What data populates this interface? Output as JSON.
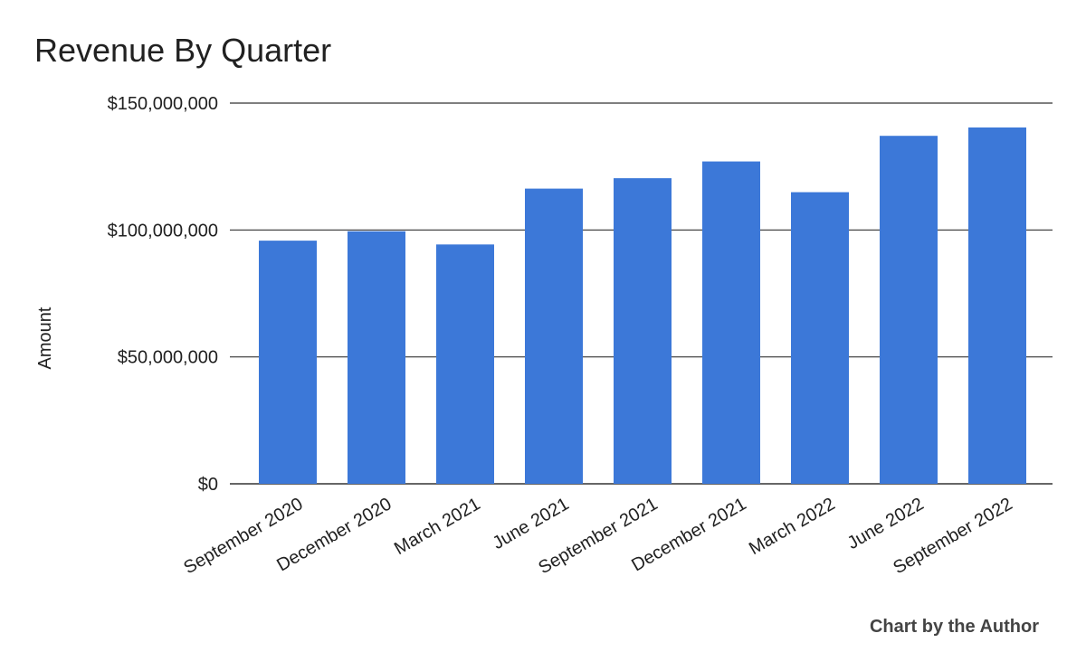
{
  "chart_data": {
    "type": "bar",
    "title": "Revenue By Quarter",
    "xlabel": "",
    "ylabel": "Amount",
    "categories": [
      "September 2020",
      "December 2020",
      "March 2021",
      "June 2021",
      "September 2021",
      "December 2021",
      "March 2022",
      "June 2022",
      "September 2022"
    ],
    "values": [
      95800000,
      99500000,
      94300000,
      116300000,
      120400000,
      127000000,
      114900000,
      137100000,
      140400000
    ],
    "ylim": [
      0,
      150000000
    ],
    "y_ticks": [
      0,
      50000000,
      100000000,
      150000000
    ],
    "y_tick_labels": [
      "$0",
      "$50,000,000",
      "$100,000,000",
      "$150,000,000"
    ],
    "grid": true,
    "legend": "none",
    "bar_color": "#3c78d8",
    "grid_color": "#333333"
  },
  "footer": {
    "credit": "Chart by the Author"
  }
}
